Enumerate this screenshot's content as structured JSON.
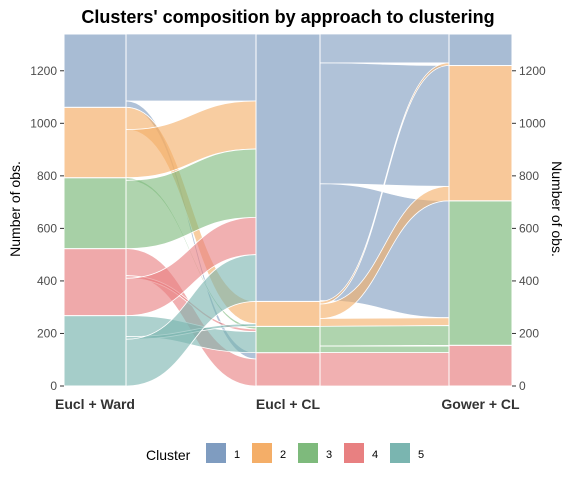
{
  "chart_data": {
    "type": "alluvial",
    "title": "Clusters' composition by approach to clustering",
    "ylabel_left": "Number of obs.",
    "ylabel_right": "Number of obs.",
    "ylim": [
      0,
      1340
    ],
    "yticks": [
      0,
      200,
      400,
      600,
      800,
      1000,
      1200
    ],
    "axes": [
      "Eucl + Ward",
      "Eucl + CL",
      "Gower + CL"
    ],
    "legend": {
      "title": "Cluster",
      "position": "bottom",
      "entries": [
        {
          "label": "1",
          "color": "#7f9cc0"
        },
        {
          "label": "2",
          "color": "#f4ae68"
        },
        {
          "label": "3",
          "color": "#7eba7c"
        },
        {
          "label": "4",
          "color": "#e88081"
        },
        {
          "label": "5",
          "color": "#7ab5b0"
        }
      ]
    },
    "cluster_colors": {
      "1": "#7f9cc0",
      "2": "#f4ae68",
      "3": "#7eba7c",
      "4": "#e88081",
      "5": "#7ab5b0"
    },
    "axis_stacks": [
      [
        [
          "5",
          268
        ],
        [
          "4",
          255
        ],
        [
          "3",
          270
        ],
        [
          "2",
          268
        ],
        [
          "1",
          279
        ]
      ],
      [
        [
          "4",
          127
        ],
        [
          "3",
          100
        ],
        [
          "2",
          95
        ],
        [
          "1",
          1018
        ]
      ],
      [
        [
          "4",
          155
        ],
        [
          "3",
          550
        ],
        [
          "2",
          515
        ],
        [
          "1",
          120
        ]
      ]
    ],
    "flows_1_2": [
      {
        "from": "1",
        "to": "1",
        "value": 255
      },
      {
        "from": "1",
        "to": "4",
        "value": 24
      },
      {
        "from": "2",
        "to": "2",
        "value": 85
      },
      {
        "from": "2",
        "to": "1",
        "value": 183
      },
      {
        "from": "3",
        "to": "3",
        "value": 10
      },
      {
        "from": "3",
        "to": "1",
        "value": 260
      },
      {
        "from": "4",
        "to": "4",
        "value": 103
      },
      {
        "from": "4",
        "to": "3",
        "value": 10
      },
      {
        "from": "4",
        "to": "1",
        "value": 142
      },
      {
        "from": "5",
        "to": "3",
        "value": 80
      },
      {
        "from": "5",
        "to": "2",
        "value": 10
      },
      {
        "from": "5",
        "to": "1",
        "value": 178
      }
    ],
    "flows_2_3": [
      {
        "from": "1",
        "to": "1",
        "value": 110
      },
      {
        "from": "1",
        "to": "2",
        "value": 460
      },
      {
        "from": "1",
        "to": "3",
        "value": 445
      },
      {
        "from": "1",
        "to": "4",
        "value": 3
      },
      {
        "from": "2",
        "to": "1",
        "value": 10
      },
      {
        "from": "2",
        "to": "2",
        "value": 55
      },
      {
        "from": "2",
        "to": "3",
        "value": 30
      },
      {
        "from": "3",
        "to": "3",
        "value": 75
      },
      {
        "from": "3",
        "to": "4",
        "value": 25
      },
      {
        "from": "4",
        "to": "4",
        "value": 127
      }
    ]
  }
}
